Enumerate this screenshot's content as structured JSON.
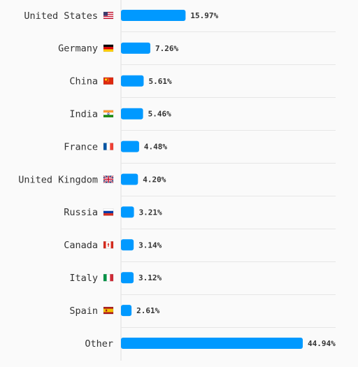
{
  "chart_data": {
    "type": "bar",
    "orientation": "horizontal",
    "categories": [
      "United States",
      "Germany",
      "China",
      "India",
      "France",
      "United Kingdom",
      "Russia",
      "Canada",
      "Italy",
      "Spain",
      "Other"
    ],
    "flags": [
      "us",
      "de",
      "cn",
      "in",
      "fr",
      "gb",
      "ru",
      "ca",
      "it",
      "es",
      ""
    ],
    "values": [
      15.97,
      7.26,
      5.61,
      5.46,
      4.48,
      4.2,
      3.21,
      3.14,
      3.12,
      2.61,
      44.94
    ],
    "value_labels": [
      "15.97%",
      "7.26%",
      "5.61%",
      "5.46%",
      "4.48%",
      "4.20%",
      "3.21%",
      "3.14%",
      "3.12%",
      "2.61%",
      "44.94%"
    ],
    "xlim": [
      0,
      50
    ],
    "grid": true,
    "bar_color": "#0099ff"
  }
}
